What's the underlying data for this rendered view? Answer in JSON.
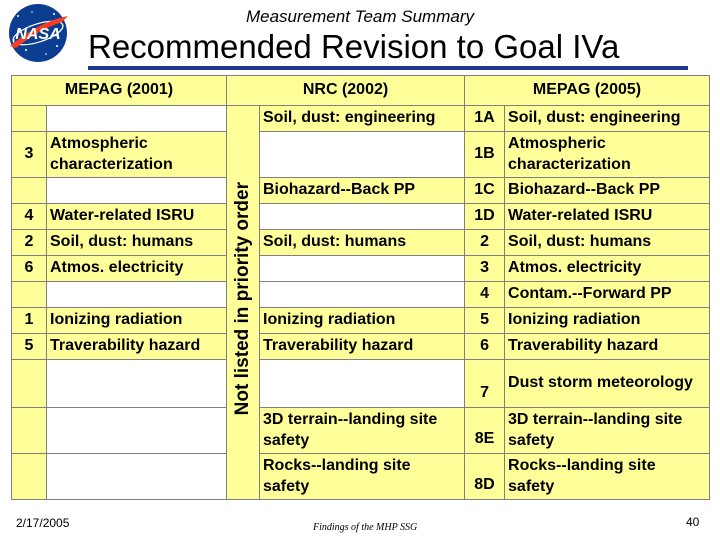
{
  "header": {
    "subtitle": "Measurement Team Summary",
    "title": "Recommended Revision to Goal IVa",
    "logo_text": "NASA"
  },
  "table": {
    "headers": {
      "mepag2001": "MEPAG (2001)",
      "nrc2002": "NRC (2002)",
      "mepag2005": "MEPAG (2005)"
    },
    "nrc_vertical_label": "Not listed in priority order",
    "rows": [
      {
        "p1": "",
        "t1": "",
        "t2": "Soil, dust:  engineering",
        "p3": "1A",
        "t3": "Soil, dust:  engineering"
      },
      {
        "p1": "3",
        "t1": "Atmospheric characterization",
        "t2": "",
        "p3": "1B",
        "t3": "Atmospheric characterization"
      },
      {
        "p1": "",
        "t1": "",
        "t2": "Biohazard--Back PP",
        "p3": "1C",
        "t3": "Biohazard--Back PP"
      },
      {
        "p1": "4",
        "t1": "Water-related ISRU",
        "t2": "",
        "p3": "1D",
        "t3": "Water-related ISRU"
      },
      {
        "p1": "2",
        "t1": "Soil, dust: humans",
        "t2": "Soil, dust: humans",
        "p3": "2",
        "t3": "Soil, dust: humans"
      },
      {
        "p1": "6",
        "t1": "Atmos. electricity",
        "t2": "",
        "p3": "3",
        "t3": "Atmos. electricity"
      },
      {
        "p1": "",
        "t1": "",
        "t2": "",
        "p3": "4",
        "t3": "Contam.--Forward PP"
      },
      {
        "p1": "1",
        "t1": "Ionizing radiation",
        "t2": "Ionizing radiation",
        "p3": "5",
        "t3": "Ionizing radiation"
      },
      {
        "p1": "5",
        "t1": "Traverability hazard",
        "t2": "Traverability hazard",
        "p3": "6",
        "t3": "Traverability hazard"
      },
      {
        "p1": "",
        "t1": "",
        "t2": "",
        "p3": "7",
        "t3": "Dust storm meteorology"
      },
      {
        "p1": "",
        "t1": "",
        "t2": "3D terrain--landing site safety",
        "p3": "8E",
        "t3": "3D terrain--landing site safety"
      },
      {
        "p1": "",
        "t1": "",
        "t2": "Rocks--landing site safety",
        "p3": "8D",
        "t3": "Rocks--landing site safety"
      }
    ]
  },
  "footer": {
    "date": "2/17/2005",
    "center": "Findings of the MHP SSG",
    "page": "40"
  },
  "colors": {
    "cell_fill": "#ffff99",
    "title_rule": "#1f3a93",
    "nasa_blue": "#0b3d91",
    "nasa_red": "#fc3d21"
  }
}
